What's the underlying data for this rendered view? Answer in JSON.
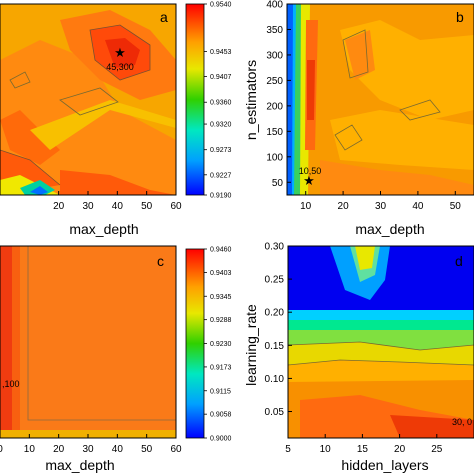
{
  "chart_data": [
    {
      "type": "heatmap",
      "panel_label": "a",
      "xlabel": "max_depth",
      "ylabel": "",
      "x_ticks": [
        "20",
        "30",
        "40",
        "50",
        "60"
      ],
      "y_ticks": [],
      "xlim": [
        0,
        60
      ],
      "colorbar_ticks": [
        "0.9540",
        "0.9453",
        "0.9407",
        "0.9360",
        "0.9320",
        "0.9273",
        "0.9227",
        "0.9190"
      ],
      "colorbar_range": [
        0.919,
        0.954
      ],
      "best_point": {
        "x": 45,
        "y": 300,
        "label": "45,300"
      }
    },
    {
      "type": "heatmap",
      "panel_label": "b",
      "xlabel": "max_depth",
      "ylabel": "n_estimators",
      "x_ticks": [
        "10",
        "20",
        "30",
        "40",
        "50"
      ],
      "y_ticks": [
        "50",
        "100",
        "150",
        "200",
        "250",
        "300",
        "350",
        "400"
      ],
      "xlim": [
        5,
        55
      ],
      "ylim": [
        25,
        400
      ],
      "best_point": {
        "x": 10,
        "y": 50,
        "label": "10,50"
      }
    },
    {
      "type": "heatmap",
      "panel_label": "c",
      "xlabel": "max_depth",
      "ylabel": "",
      "x_ticks": [
        "0",
        "10",
        "20",
        "30",
        "40",
        "50",
        "60"
      ],
      "y_ticks": [],
      "xlim": [
        0,
        60
      ],
      "colorbar_ticks": [
        "0.9460",
        "0.9403",
        "0.9345",
        "0.9288",
        "0.9230",
        "0.9173",
        "0.9115",
        "0.9058",
        "0.9000"
      ],
      "colorbar_range": [
        0.9,
        0.946
      ],
      "best_point": {
        "x": 0,
        "y": 100,
        "label": ",100"
      }
    },
    {
      "type": "heatmap",
      "panel_label": "d",
      "xlabel": "hidden_layers",
      "ylabel": "learning_rate",
      "x_ticks": [
        "5",
        "10",
        "15",
        "20",
        "25"
      ],
      "y_ticks": [
        "0.05",
        "0.10",
        "0.15",
        "0.20",
        "0.25",
        "0.30"
      ],
      "xlim": [
        5,
        30
      ],
      "ylim": [
        0.01,
        0.3
      ],
      "best_point": {
        "x": 30,
        "y": 0.02,
        "label": "30, 0"
      }
    }
  ]
}
